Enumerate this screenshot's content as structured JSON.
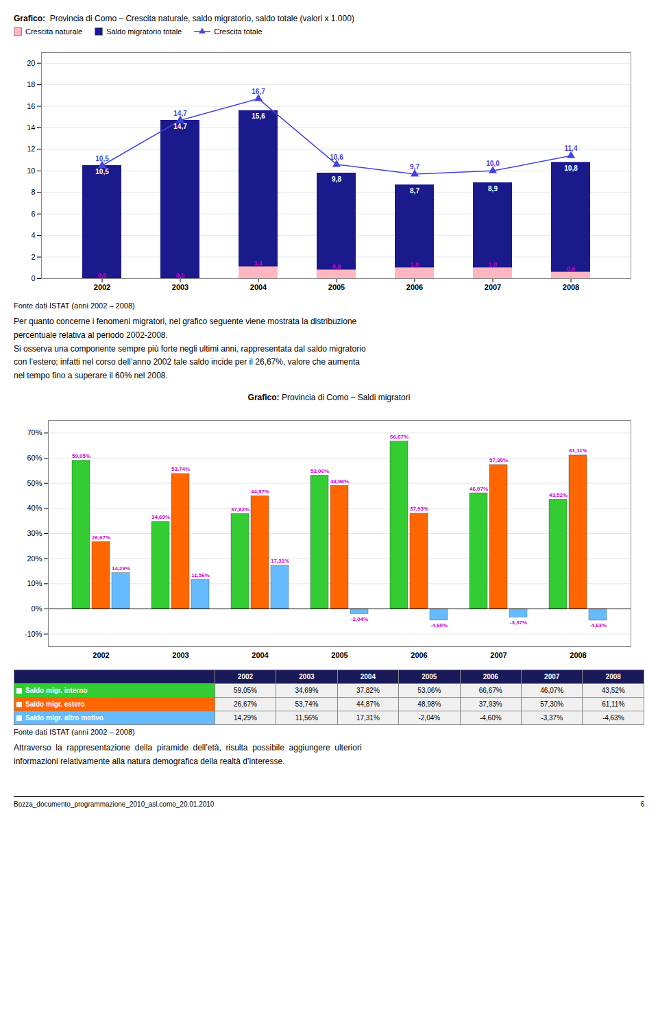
{
  "chart_data": [
    {
      "type": "bar",
      "title": "Grafico:  Provincia di Como – Crescita naturale, saldo migratorio, saldo totale (valori x 1.000)",
      "categories": [
        "2002",
        "2003",
        "2004",
        "2005",
        "2006",
        "2007",
        "2008"
      ],
      "series": [
        {
          "name": "Crescita naturale",
          "type": "bar",
          "color": "#ffb6c1",
          "values": [
            0.0,
            0.0,
            1.1,
            0.8,
            1.0,
            1.0,
            0.6
          ],
          "value_labels": [
            "0,0",
            "0,0",
            "1,1",
            "0,8",
            "1,0",
            "1,0",
            "0,6"
          ]
        },
        {
          "name": "Saldo migratorio totale",
          "type": "bar",
          "color": "#1a1a8c",
          "values": [
            10.5,
            14.7,
            15.6,
            9.8,
            8.7,
            8.9,
            10.8
          ],
          "value_labels": [
            "10,5",
            "14,7",
            "15,6",
            "9,8",
            "8,7",
            "8,9",
            "10,8"
          ]
        },
        {
          "name": "Crescita totale",
          "type": "line",
          "color": "#4444dd",
          "marker": "triangle",
          "values": [
            10.5,
            14.7,
            16.7,
            10.6,
            9.7,
            10.0,
            11.4
          ],
          "value_labels": [
            "10,5",
            "14,7",
            "16,7",
            "10,6",
            "9,7",
            "10,0",
            "11,4"
          ]
        }
      ],
      "ylim": [
        0,
        21
      ],
      "yticks": [
        0,
        2,
        4,
        6,
        8,
        10,
        12,
        14,
        16,
        18,
        20
      ],
      "grid": true,
      "legend": "upper left",
      "data_labels": true,
      "caption": "Fonte dati ISTAT (anni 2002 – 2008)",
      "notes": [
        "Per quanto concerne i fenomeni migratori, nel grafico seguente viene mostrata la distribuzione",
        "percentuale relativa al periodo 2002-2008.",
        "Si osserva una componente sempre più forte negli ultimi anni, rappresentata dal saldo migratorio",
        "con l’estero; infatti nel corso dell’anno 2002 tale saldo incide per il 26,67%, valore che aumenta",
        "nel tempo fino a superare il 60% nel 2008."
      ]
    },
    {
      "type": "bar",
      "title": "Grafico: Provincia di Como – Saldi migratori",
      "categories": [
        "2002",
        "2003",
        "2004",
        "2005",
        "2006",
        "2007",
        "2008"
      ],
      "series": [
        {
          "name": "Saldo migr. interno",
          "color": "#33cc33",
          "values": [
            59.05,
            34.69,
            37.82,
            53.06,
            66.67,
            46.07,
            43.52
          ],
          "value_labels": [
            "59,05%",
            "34,69%",
            "37,82%",
            "53,06%",
            "66,67%",
            "46,07%",
            "43,52%"
          ]
        },
        {
          "name": "Saldo migr. estero",
          "color": "#ff6600",
          "values": [
            26.67,
            53.74,
            44.87,
            48.98,
            37.93,
            57.3,
            61.11
          ],
          "value_labels": [
            "26,67%",
            "53,74%",
            "44,87%",
            "48,98%",
            "37,93%",
            "57,30%",
            "61,11%"
          ]
        },
        {
          "name": "Saldo migr. altro motivo",
          "color": "#66bbff",
          "values": [
            14.29,
            11.56,
            17.31,
            -2.04,
            -4.6,
            -3.37,
            -4.63
          ],
          "value_labels": [
            "14,29%",
            "11,56%",
            "17,31%",
            "-2,04%",
            "-4,60%",
            "-3,37%",
            "-4,63%"
          ]
        }
      ],
      "ylim": [
        -15,
        75
      ],
      "yticks": [
        {
          "value": -10,
          "label": "-10%"
        },
        {
          "value": 0,
          "label": "0%"
        },
        {
          "value": 10,
          "label": "10%"
        },
        {
          "value": 20,
          "label": "20%"
        },
        {
          "value": 30,
          "label": "30%"
        },
        {
          "value": 40,
          "label": "40%"
        },
        {
          "value": 50,
          "label": "50%"
        },
        {
          "value": 60,
          "label": "60%"
        },
        {
          "value": 70,
          "label": "70%"
        }
      ],
      "grid": true,
      "data_labels": true,
      "caption": "Fonte dati ISTAT (anni 2002 – 2008)",
      "notes": [
        "Attraverso  la  rappresentazione  della  piramide  dell’età,  risulta  possibile  aggiungere  ulteriori",
        "informazioni relativamente alla natura demografica della realtà d’interesse."
      ]
    }
  ],
  "footer": "Bozza_documento_programmazione_2010_asl.como_20.01.2010",
  "page_number": "6"
}
